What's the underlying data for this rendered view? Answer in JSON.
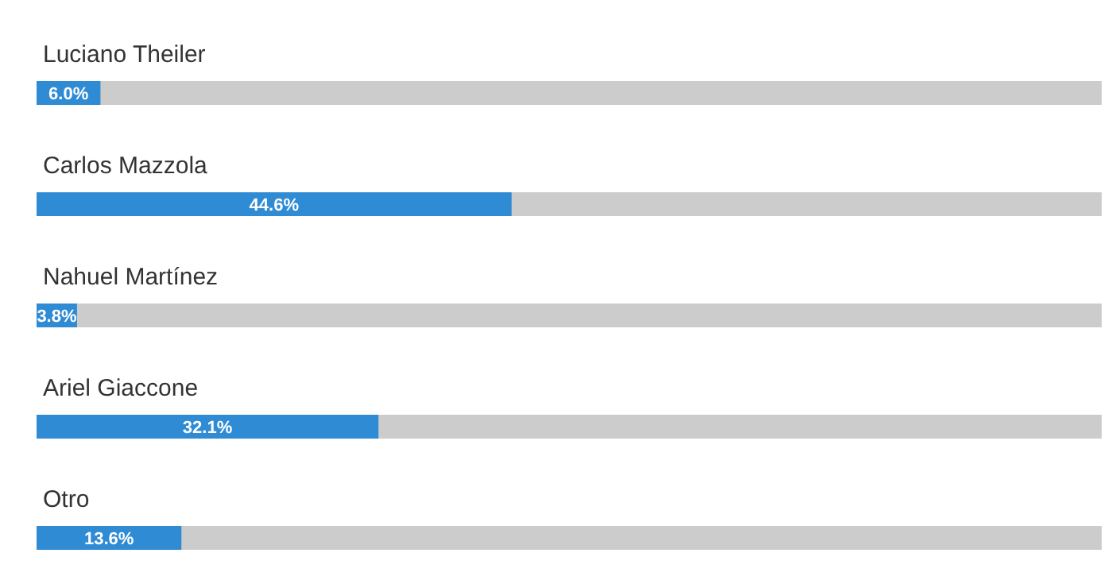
{
  "chart_data": {
    "type": "bar",
    "orientation": "horizontal",
    "categories": [
      "Luciano Theiler",
      "Carlos Mazzola",
      "Nahuel Martínez",
      "Ariel Giaccone",
      "Otro"
    ],
    "values": [
      6.0,
      44.6,
      3.8,
      32.1,
      13.6
    ],
    "value_labels": [
      "6.0%",
      "44.6%",
      "3.8%",
      "32.1%",
      "13.6%"
    ],
    "color": "#2f8bd4",
    "xlim": [
      0,
      100
    ]
  }
}
